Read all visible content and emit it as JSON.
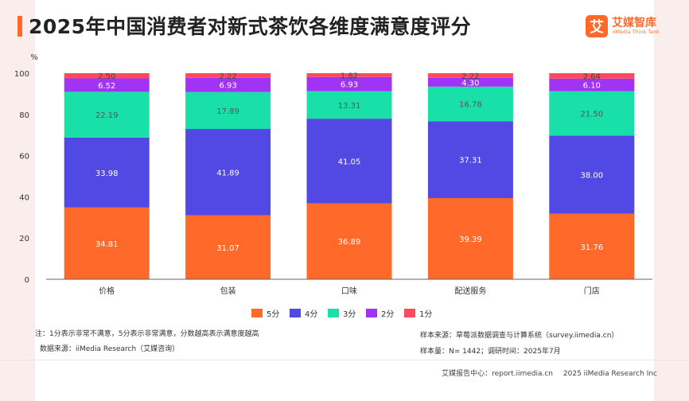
{
  "title": "2025年中国消费者对新式茶饮各维度满意度评分",
  "logo": {
    "mark": "艾",
    "name": "艾媒智库",
    "sub": "iiMedia Think Tank"
  },
  "notes": {
    "note_left": "注：1分表示非常不满意，5分表示非常满意，分数越高表示满意度越高",
    "source_left": "数据来源：iiMedia Research（艾媒咨询）",
    "sample_source": "样本来源：草莓派数据调查与计算系统（survey.iimedia.cn）",
    "sample_size": "样本量：N= 1442；调研时间：2025年7月"
  },
  "footer": {
    "center": "艾媒报告中心：report.iimedia.cn",
    "copyright": "2025 iiMedia Research Inc"
  },
  "colors": {
    "5分": "#ff6a2b",
    "4分": "#5248e3",
    "3分": "#19e0a8",
    "2分": "#a133f5",
    "1分": "#ff4a5e"
  },
  "chart_data": {
    "type": "bar",
    "stacked": true,
    "ylabel": "%",
    "ylim": [
      0,
      100
    ],
    "yticks": [
      0,
      20,
      40,
      60,
      80,
      100
    ],
    "grid": false,
    "legend_position": "bottom",
    "categories": [
      "价格",
      "包装",
      "口味",
      "配送服务",
      "门店"
    ],
    "series": [
      {
        "name": "5分",
        "values": [
          34.81,
          31.07,
          36.89,
          39.39,
          31.76
        ]
      },
      {
        "name": "4分",
        "values": [
          33.98,
          41.89,
          41.05,
          37.31,
          38.0
        ]
      },
      {
        "name": "3分",
        "values": [
          22.19,
          17.89,
          13.31,
          16.78,
          21.5
        ]
      },
      {
        "name": "2分",
        "values": [
          6.52,
          6.93,
          6.93,
          4.3,
          6.1
        ]
      },
      {
        "name": "1分",
        "values": [
          2.5,
          2.22,
          1.82,
          2.22,
          2.64
        ]
      }
    ],
    "labels": [
      [
        "34.81",
        "33.98",
        "22.19",
        "6.52",
        "2.50"
      ],
      [
        "31.07",
        "41.89",
        "17.89",
        "6.93",
        "2.22"
      ],
      [
        "36.89",
        "41.05",
        "13.31",
        "6.93",
        "1.82"
      ],
      [
        "39.39",
        "37.31",
        "16.78",
        "4.30",
        "2.22"
      ],
      [
        "31.76",
        "38.00",
        "21.50",
        "6.10",
        "2.64"
      ]
    ]
  }
}
